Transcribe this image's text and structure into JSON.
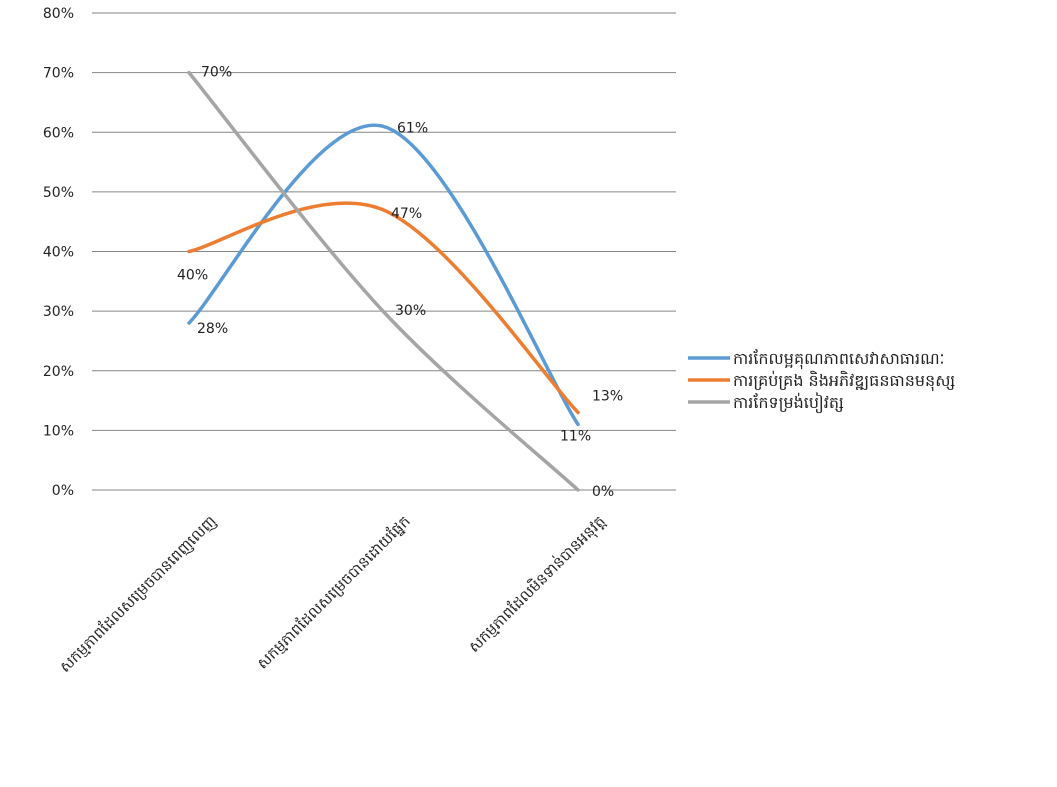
{
  "chart_data": {
    "type": "line",
    "smooth": true,
    "categories": [
      "សកម្មភាពដែលសម្រេចបានពេញលេញ",
      "សកម្មភាពដែលសម្រេចបានដោយផ្នែក",
      "សកម្មភាពដែលមិនទាន់បានអនុវត្ត"
    ],
    "series": [
      {
        "name": "ការកែលម្អគុណភាពសេវាសាធារណៈ",
        "values": [
          28,
          61,
          11
        ],
        "labels": [
          "28%",
          "61%",
          "11%"
        ],
        "color": "#5B9BD5"
      },
      {
        "name": "ការគ្រប់គ្រង និងអភិវឌ្ឍធនធានមនុស្ស",
        "values": [
          40,
          47,
          13
        ],
        "labels": [
          "40%",
          "47%",
          "13%"
        ],
        "color": "#ED7D31"
      },
      {
        "name": "ការកែទម្រង់បៀវត្ស",
        "values": [
          70,
          30,
          0
        ],
        "labels": [
          "70%",
          "30%",
          "0%"
        ],
        "color": "#A5A5A5"
      }
    ],
    "y_ticks": [
      "0%",
      "10%",
      "20%",
      "30%",
      "40%",
      "50%",
      "60%",
      "70%",
      "80%"
    ],
    "ylim": [
      0,
      80
    ],
    "grid": true,
    "legend": "right"
  }
}
